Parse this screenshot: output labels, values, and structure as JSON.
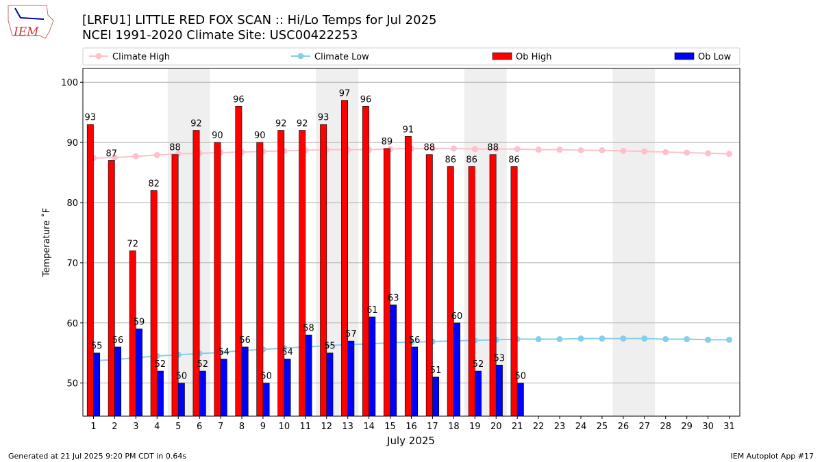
{
  "chart_data": {
    "type": "bar",
    "title": "[LRFU1] LITTLE RED FOX SCAN :: Hi/Lo Temps for Jul 2025",
    "subtitle": "NCEI 1991-2020 Climate Site: USC00422253",
    "logo_text": "IEM",
    "xlabel": "July 2025",
    "ylabel": "Temperature $^\\circ$F",
    "ylabel_printed": "Temperature ˚F",
    "footer_left": "Generated at 21 Jul 2025 9:20 PM CDT in 0.64s",
    "footer_right": "IEM Autoplot App #17",
    "x": [
      1,
      2,
      3,
      4,
      5,
      6,
      7,
      8,
      9,
      10,
      11,
      12,
      13,
      14,
      15,
      16,
      17,
      18,
      19,
      20,
      21,
      22,
      23,
      24,
      25,
      26,
      27,
      28,
      29,
      30,
      31
    ],
    "xlim": [
      0.5,
      31.5
    ],
    "xticks": [
      1,
      2,
      3,
      4,
      5,
      6,
      7,
      8,
      9,
      10,
      11,
      12,
      13,
      14,
      15,
      16,
      17,
      18,
      19,
      20,
      21,
      22,
      23,
      24,
      25,
      26,
      27,
      28,
      29,
      30,
      31
    ],
    "ylim": [
      44.5,
      102.3
    ],
    "yticks": [
      50,
      60,
      70,
      80,
      90,
      100
    ],
    "grid": true,
    "shaded_spans": [
      [
        4.5,
        6.5
      ],
      [
        11.5,
        13.5
      ],
      [
        18.5,
        20.5
      ],
      [
        25.5,
        27.5
      ]
    ],
    "shade_color": "#efefef",
    "series": [
      {
        "name": "Climate High",
        "kind": "line",
        "color": "#ffc0cb",
        "values": [
          87.4,
          87.5,
          87.7,
          87.9,
          88.1,
          88.2,
          88.3,
          88.4,
          88.5,
          88.6,
          88.7,
          88.8,
          88.8,
          88.8,
          88.9,
          89.0,
          89.0,
          89.0,
          88.9,
          88.9,
          88.9,
          88.8,
          88.8,
          88.7,
          88.7,
          88.6,
          88.5,
          88.4,
          88.3,
          88.2,
          88.1
        ]
      },
      {
        "name": "Climate Low",
        "kind": "line",
        "color": "#87ceeb",
        "values": [
          53.7,
          53.9,
          54.2,
          54.5,
          54.7,
          54.9,
          55.1,
          55.4,
          55.6,
          55.8,
          56.0,
          56.2,
          56.4,
          56.5,
          56.7,
          56.8,
          56.9,
          57.0,
          57.1,
          57.2,
          57.3,
          57.3,
          57.3,
          57.4,
          57.4,
          57.4,
          57.4,
          57.3,
          57.3,
          57.2,
          57.2
        ]
      },
      {
        "name": "Ob High",
        "kind": "bar",
        "color": "#ff0000",
        "values": [
          93,
          87,
          72,
          82,
          88,
          92,
          90,
          96,
          90,
          92,
          92,
          93,
          97,
          96,
          89,
          91,
          88,
          86,
          86,
          88,
          86,
          null,
          null,
          null,
          null,
          null,
          null,
          null,
          null,
          null,
          null
        ]
      },
      {
        "name": "Ob Low",
        "kind": "bar",
        "color": "#0000ff",
        "values": [
          55,
          56,
          59,
          52,
          50,
          52,
          54,
          56,
          50,
          54,
          58,
          55,
          57,
          61,
          63,
          56,
          51,
          60,
          52,
          53,
          50,
          null,
          null,
          null,
          null,
          null,
          null,
          null,
          null,
          null,
          null
        ]
      }
    ]
  }
}
